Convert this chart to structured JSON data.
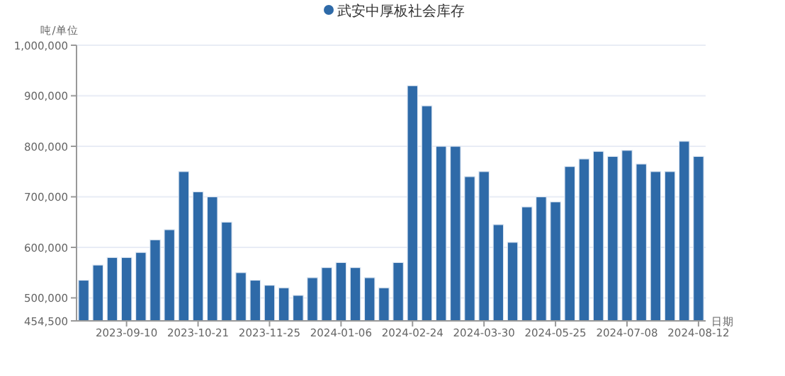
{
  "chart_data": {
    "type": "bar",
    "categories": [
      null,
      null,
      null,
      "2023-09-10",
      null,
      null,
      null,
      null,
      "2023-10-21",
      null,
      null,
      null,
      null,
      "2023-11-25",
      null,
      null,
      null,
      null,
      "2024-01-06",
      null,
      null,
      null,
      null,
      "2024-02-24",
      null,
      null,
      null,
      null,
      "2024-03-30",
      null,
      null,
      null,
      null,
      "2024-05-25",
      null,
      null,
      null,
      null,
      "2024-07-08",
      null,
      null,
      null,
      null,
      "2024-08-12"
    ],
    "series": [
      {
        "name": "武安中厚板社会库存",
        "color": "#2e6aa8",
        "values": [
          535000,
          565000,
          580000,
          580000,
          590000,
          615000,
          635000,
          750000,
          710000,
          700000,
          650000,
          550000,
          535000,
          525000,
          520000,
          505000,
          540000,
          560000,
          570000,
          560000,
          540000,
          520000,
          570000,
          920000,
          880000,
          800000,
          800000,
          740000,
          750000,
          645000,
          610000,
          680000,
          700000,
          690000,
          760000,
          775000,
          790000,
          780000,
          792000,
          765000,
          750000,
          750000,
          810000,
          780000
        ]
      }
    ],
    "ylim": [
      454500,
      1000000
    ],
    "yticks": [
      {
        "value": 454500,
        "label": "454,500"
      },
      {
        "value": 500000,
        "label": "500,000"
      },
      {
        "value": 600000,
        "label": "600,000"
      },
      {
        "value": 700000,
        "label": "700,000"
      },
      {
        "value": 800000,
        "label": "800,000"
      },
      {
        "value": 900000,
        "label": "900,000"
      },
      {
        "value": 1000000,
        "label": "1,000,000"
      }
    ],
    "ylabel": "吨/单位",
    "xlabel": "日期",
    "grid": "y",
    "legend": "top"
  }
}
